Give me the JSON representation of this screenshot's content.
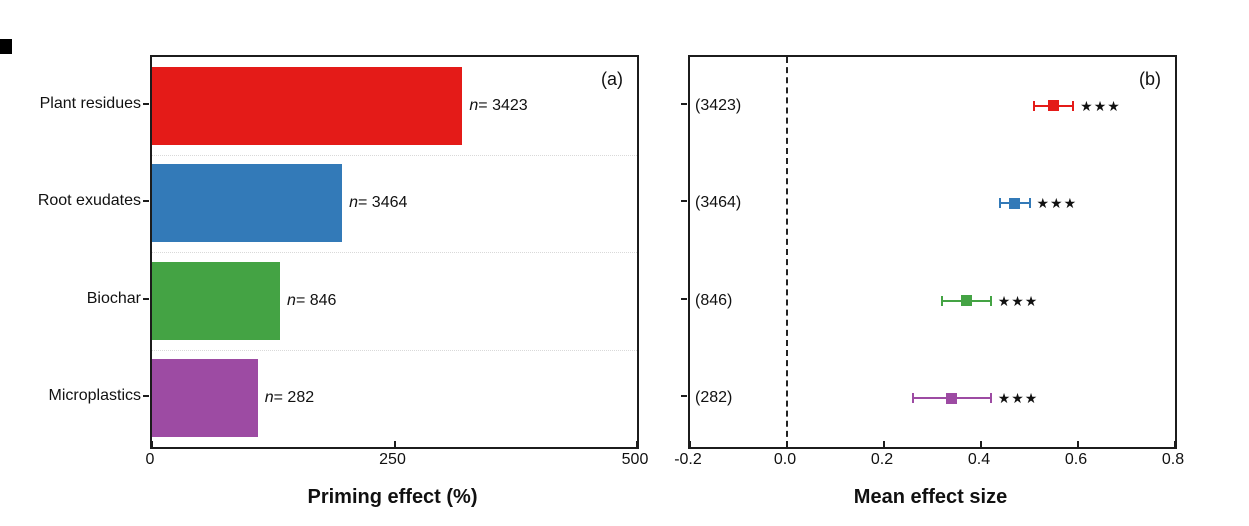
{
  "figure": {
    "background": "#ffffff",
    "panel_a_letter": "(a)",
    "panel_b_letter": "(b)"
  },
  "chart_data": [
    {
      "type": "bar",
      "orientation": "horizontal",
      "panel_label": "(a)",
      "title": "",
      "xlabel": "Priming effect (%)",
      "categories": [
        "Plant residues",
        "Root exudates",
        "Biochar",
        "Microplastics"
      ],
      "values": [
        320,
        196,
        132,
        109
      ],
      "sample_sizes": [
        "3423",
        "3464",
        "846",
        "282"
      ],
      "n_label_prefix": "n",
      "n_label_separator": "= ",
      "colors": [
        "#e41b18",
        "#337ab8",
        "#44a344",
        "#9d4ba3"
      ],
      "xlim": [
        0,
        500
      ],
      "x_tick_values": [
        0,
        250,
        500
      ],
      "x_tick_labels": [
        "0",
        "250",
        "500"
      ],
      "grid": "dotted horizontal lines between categories",
      "legend": "none"
    },
    {
      "type": "scatter",
      "subtype": "forest-plot",
      "panel_label": "(b)",
      "title": "",
      "xlabel": "Mean effect size",
      "row_labels": [
        "(3423)",
        "(3464)",
        "(846)",
        "(282)"
      ],
      "series": [
        {
          "name": "mean effect size",
          "values": [
            0.55,
            0.47,
            0.37,
            0.34
          ],
          "ci_low": [
            0.51,
            0.44,
            0.32,
            0.26
          ],
          "ci_high": [
            0.59,
            0.5,
            0.42,
            0.42
          ]
        }
      ],
      "significance": [
        "***",
        "***",
        "***",
        "***"
      ],
      "significance_glyph": "★",
      "colors": [
        "#e41b18",
        "#337ab8",
        "#44a344",
        "#9d4ba3"
      ],
      "xlim": [
        -0.2,
        0.8
      ],
      "x_tick_values": [
        -0.2,
        0.0,
        0.2,
        0.4,
        0.6,
        0.8
      ],
      "x_tick_labels": [
        "-0.2",
        "0.0",
        "0.2",
        "0.4",
        "0.6",
        "0.8"
      ],
      "reference_line_x": 0.0,
      "grid": "off",
      "legend": "none"
    }
  ]
}
